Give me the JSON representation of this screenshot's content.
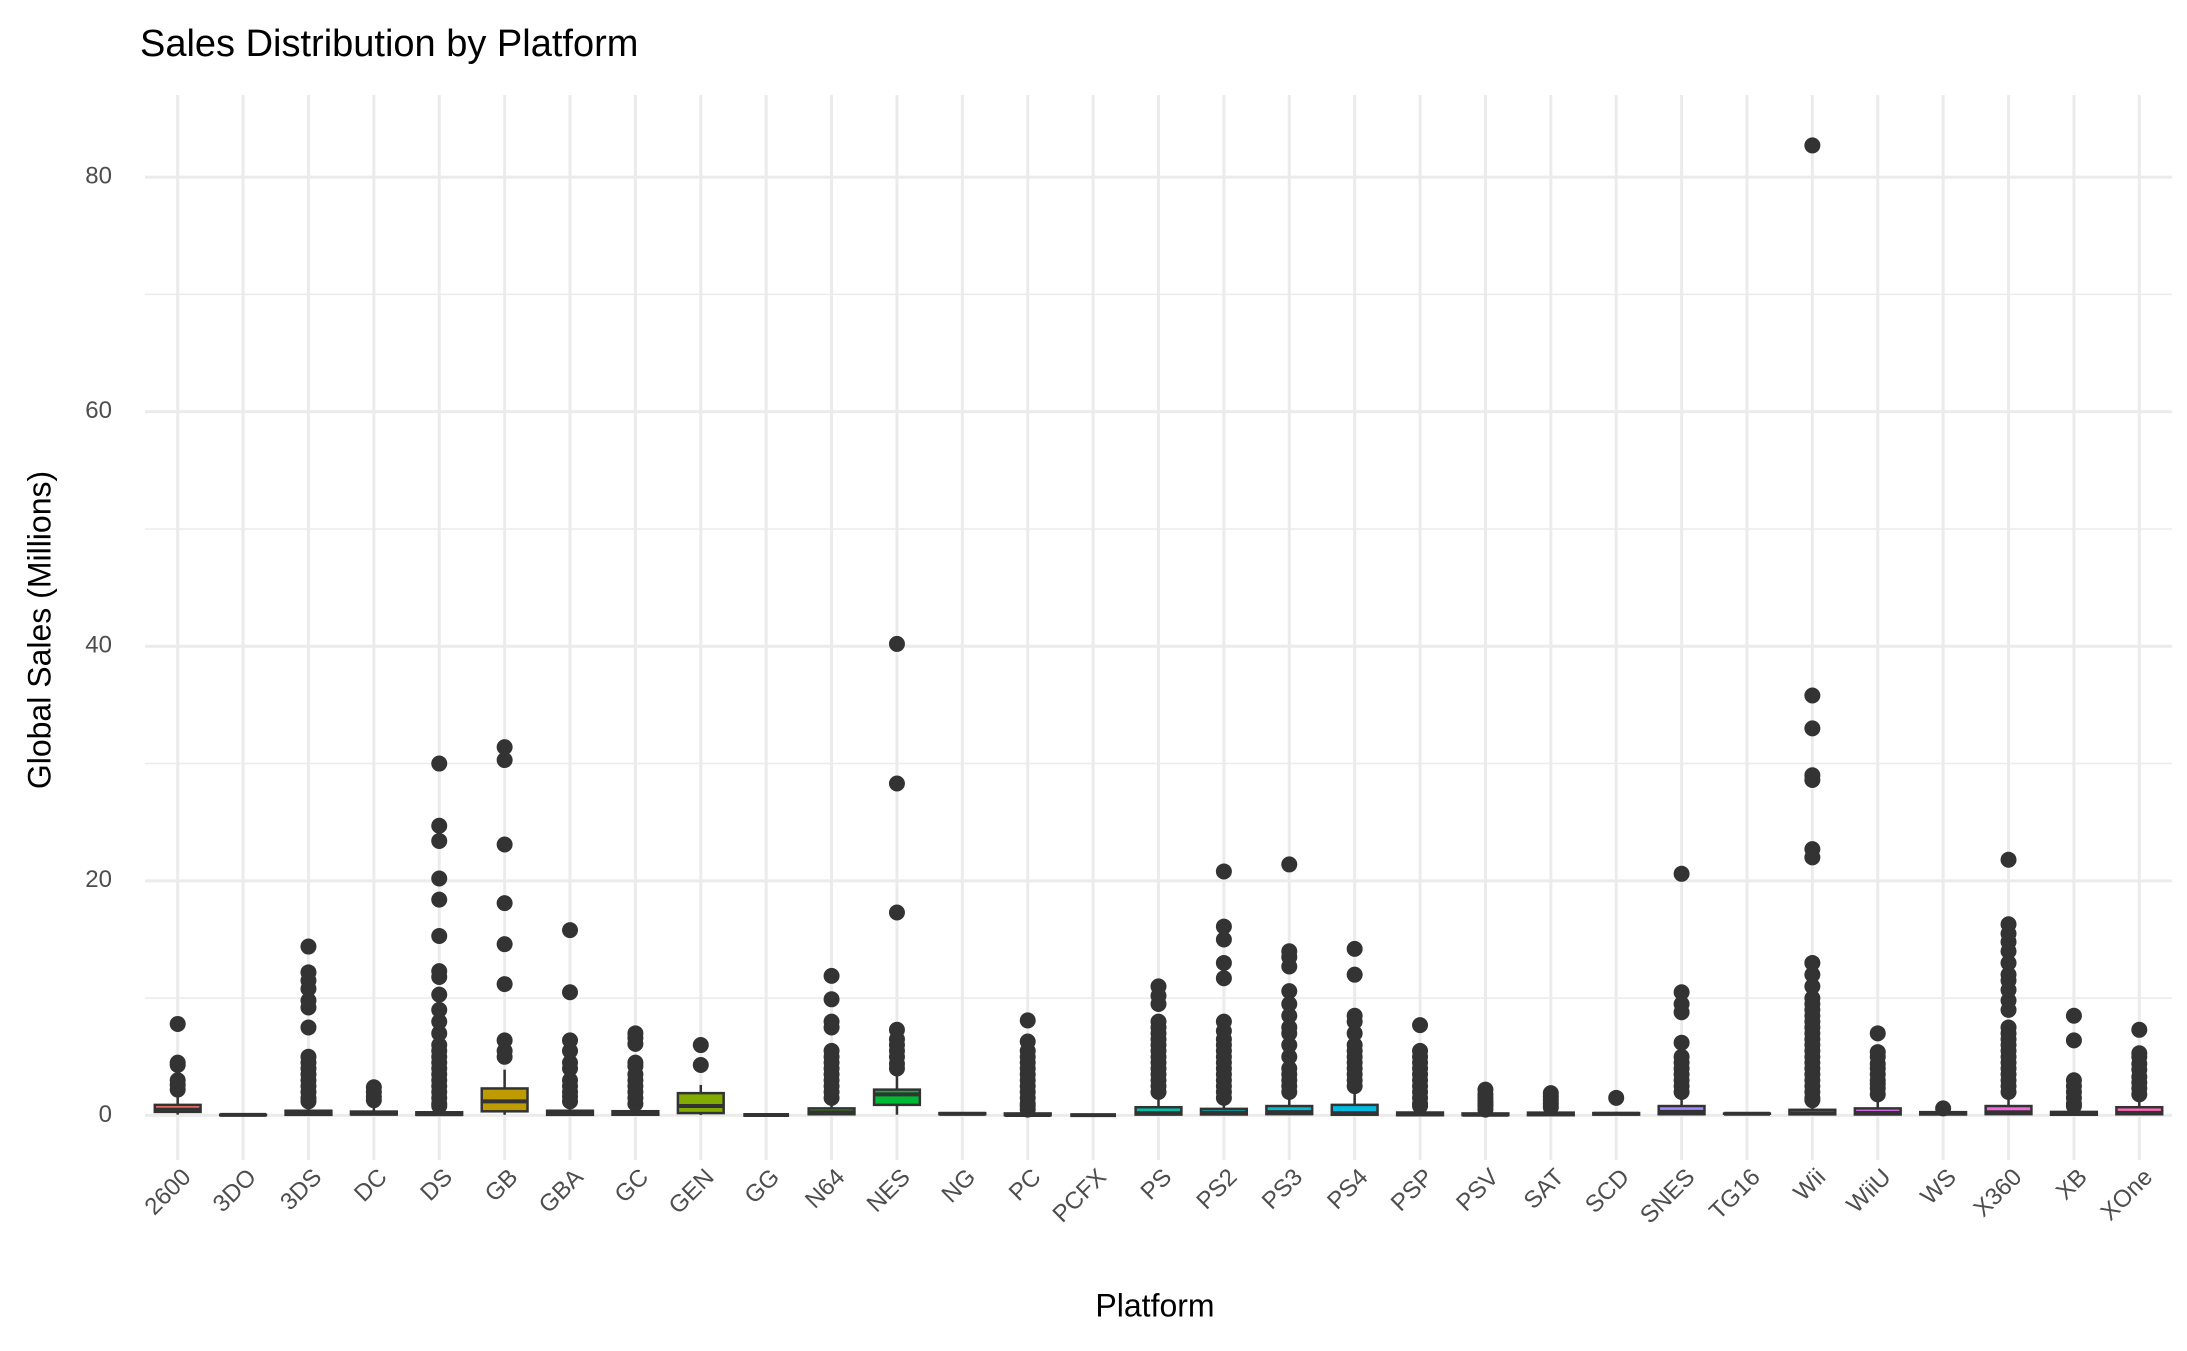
{
  "chart_data": {
    "type": "boxplot",
    "title": "Sales Distribution by Platform",
    "x_label": "Platform",
    "y_label": "Global Sales (Millions)",
    "ylim": [
      -3.8,
      87
    ],
    "yticks": [
      0,
      20,
      40,
      60,
      80
    ],
    "y_minor_ticks": [
      10,
      30,
      50,
      70
    ],
    "grid": true,
    "box_stroke": "#333333",
    "outlier_color": "#333333",
    "categories": [
      "2600",
      "3DO",
      "3DS",
      "DC",
      "DS",
      "GB",
      "GBA",
      "GC",
      "GEN",
      "GG",
      "N64",
      "NES",
      "NG",
      "PC",
      "PCFX",
      "PS",
      "PS2",
      "PS3",
      "PS4",
      "PSP",
      "PSV",
      "SAT",
      "SCD",
      "SNES",
      "TG16",
      "Wii",
      "WiiU",
      "WS",
      "X360",
      "XB",
      "XOne"
    ],
    "colors": [
      "#F8766D",
      "#F17D51",
      "#E7851E",
      "#DB8E00",
      "#CD9600",
      "#BE9C00",
      "#AEA200",
      "#9AA800",
      "#82AD00",
      "#64B200",
      "#35B600",
      "#00B935",
      "#00BC59",
      "#00BE76",
      "#00C08F",
      "#00C1A7",
      "#00C0BC",
      "#00BED0",
      "#00BAE1",
      "#00B4EF",
      "#00ACFC",
      "#3DA1FF",
      "#8494FF",
      "#A58AFF",
      "#BE80FF",
      "#D277FF",
      "#E26EF7",
      "#EE67EB",
      "#F865DC",
      "#FF62CB",
      "#FF65B8"
    ],
    "boxes": [
      {
        "whisker_low": 0.07,
        "q1": 0.3,
        "median": 0.5,
        "q3": 0.9,
        "whisker_high": 1.8,
        "outliers": [
          2.2,
          2.6,
          3.0,
          4.3,
          4.5,
          7.8
        ]
      },
      {
        "whisker_low": 0.02,
        "q1": 0.02,
        "median": 0.05,
        "q3": 0.06,
        "whisker_high": 0.1,
        "outliers": []
      },
      {
        "whisker_low": 0.01,
        "q1": 0.05,
        "median": 0.12,
        "q3": 0.4,
        "whisker_high": 0.9,
        "outliers": [
          1.2,
          1.5,
          2,
          2.5,
          3,
          3.5,
          4,
          4.5,
          5,
          7.5,
          9.2,
          9.8,
          10.8,
          11.5,
          12.2,
          14.4
        ]
      },
      {
        "whisker_low": 0.02,
        "q1": 0.08,
        "median": 0.14,
        "q3": 0.33,
        "whisker_high": 0.7,
        "outliers": [
          1.3,
          1.6,
          2.0,
          2.4
        ]
      },
      {
        "whisker_low": 0.01,
        "q1": 0.05,
        "median": 0.11,
        "q3": 0.27,
        "whisker_high": 0.6,
        "outliers": [
          0.8,
          1,
          1.5,
          2,
          2.5,
          3,
          3.5,
          4,
          4.5,
          5,
          5.5,
          6,
          7,
          8,
          9,
          10.3,
          11.8,
          12.3,
          15.3,
          18.4,
          20.2,
          23.4,
          24.7,
          30
        ]
      },
      {
        "whisker_low": 0.05,
        "q1": 0.35,
        "median": 1.2,
        "q3": 2.3,
        "whisker_high": 3.9,
        "outliers": [
          5,
          5.5,
          6.4,
          11.2,
          14.6,
          18.1,
          23.1,
          30.3,
          31.4
        ]
      },
      {
        "whisker_low": 0.01,
        "q1": 0.05,
        "median": 0.16,
        "q3": 0.4,
        "whisker_high": 0.9,
        "outliers": [
          1.2,
          1.6,
          2,
          2.5,
          3,
          4,
          4.5,
          5.5,
          6.4,
          10.5,
          15.8
        ]
      },
      {
        "whisker_low": 0.01,
        "q1": 0.06,
        "median": 0.15,
        "q3": 0.36,
        "whisker_high": 0.8,
        "outliers": [
          1,
          1.5,
          2,
          2.5,
          3,
          3.5,
          4.2,
          4.5,
          6.1,
          6.6,
          7
        ]
      },
      {
        "whisker_low": 0.03,
        "q1": 0.2,
        "median": 0.8,
        "q3": 1.9,
        "whisker_high": 2.6,
        "outliers": [
          4.3,
          6
        ]
      },
      {
        "whisker_low": 0.04,
        "q1": 0.04,
        "median": 0.04,
        "q3": 0.04,
        "whisker_high": 0.04,
        "outliers": []
      },
      {
        "whisker_low": 0.01,
        "q1": 0.1,
        "median": 0.27,
        "q3": 0.6,
        "whisker_high": 1.3,
        "outliers": [
          1.5,
          2,
          2.5,
          3,
          3.5,
          4,
          4.5,
          5,
          5.5,
          7.5,
          8,
          9.9,
          11.9
        ]
      },
      {
        "whisker_low": 0.06,
        "q1": 0.9,
        "median": 1.8,
        "q3": 2.2,
        "whisker_high": 3.6,
        "outliers": [
          4,
          4.4,
          5,
          5.5,
          6,
          6.5,
          7.3,
          17.3,
          28.3,
          40.2
        ]
      },
      {
        "whisker_low": 0.02,
        "q1": 0.1,
        "median": 0.13,
        "q3": 0.2,
        "whisker_high": 0.25,
        "outliers": []
      },
      {
        "whisker_low": 0.01,
        "q1": 0.02,
        "median": 0.04,
        "q3": 0.17,
        "whisker_high": 0.4,
        "outliers": [
          0.5,
          0.8,
          1,
          1.5,
          2,
          2.5,
          3,
          3.5,
          4,
          4.5,
          5,
          5.5,
          6.3,
          8.1
        ]
      },
      {
        "whisker_low": 0.03,
        "q1": 0.03,
        "median": 0.03,
        "q3": 0.03,
        "whisker_high": 0.03,
        "outliers": []
      },
      {
        "whisker_low": 0.01,
        "q1": 0.07,
        "median": 0.2,
        "q3": 0.7,
        "whisker_high": 1.6,
        "outliers": [
          2,
          2.5,
          3,
          3.5,
          4,
          4.5,
          5,
          5.5,
          6,
          6.5,
          7,
          7.5,
          8,
          9.5,
          10.2,
          11
        ]
      },
      {
        "whisker_low": 0.01,
        "q1": 0.08,
        "median": 0.23,
        "q3": 0.56,
        "whisker_high": 1.27,
        "outliers": [
          1.5,
          2,
          2.5,
          3,
          3.5,
          4,
          4.5,
          5,
          5.5,
          6,
          6.5,
          7.2,
          8,
          11.7,
          13,
          15,
          16.1,
          20.8
        ]
      },
      {
        "whisker_low": 0.01,
        "q1": 0.11,
        "median": 0.28,
        "q3": 0.8,
        "whisker_high": 1.8,
        "outliers": [
          2,
          2.5,
          3,
          3.5,
          4,
          5,
          6,
          7,
          7.5,
          8.5,
          9.5,
          10.6,
          12.7,
          13.5,
          14,
          21.4
        ]
      },
      {
        "whisker_low": 0.01,
        "q1": 0.06,
        "median": 0.2,
        "q3": 0.9,
        "whisker_high": 2.1,
        "outliers": [
          2.5,
          3,
          3.5,
          4,
          4.5,
          5,
          5.5,
          6,
          7,
          8,
          8.5,
          12,
          14.2
        ]
      },
      {
        "whisker_low": 0.01,
        "q1": 0.02,
        "median": 0.09,
        "q3": 0.25,
        "whisker_high": 0.6,
        "outliers": [
          0.8,
          1,
          1.5,
          2,
          2.5,
          3,
          3.5,
          4,
          4.5,
          5,
          5.5,
          7.7
        ]
      },
      {
        "whisker_low": 0.01,
        "q1": 0.03,
        "median": 0.06,
        "q3": 0.17,
        "whisker_high": 0.37,
        "outliers": [
          0.5,
          0.8,
          1,
          1.2,
          1.5,
          1.8,
          2.2
        ]
      },
      {
        "whisker_low": 0.01,
        "q1": 0.02,
        "median": 0.12,
        "q3": 0.24,
        "whisker_high": 0.5,
        "outliers": [
          0.7,
          1,
          1.3,
          1.6,
          1.9
        ]
      },
      {
        "whisker_low": 0.04,
        "q1": 0.07,
        "median": 0.14,
        "q3": 0.2,
        "whisker_high": 0.3,
        "outliers": [
          1.5
        ]
      },
      {
        "whisker_low": 0.01,
        "q1": 0.1,
        "median": 0.3,
        "q3": 0.8,
        "whisker_high": 1.7,
        "outliers": [
          2,
          2.5,
          3,
          3.5,
          4,
          4.5,
          5,
          6.2,
          8.8,
          9.5,
          10.5,
          20.6
        ]
      },
      {
        "whisker_low": 0.14,
        "q1": 0.14,
        "median": 0.14,
        "q3": 0.16,
        "whisker_high": 0.16,
        "outliers": []
      },
      {
        "whisker_low": 0.01,
        "q1": 0.09,
        "median": 0.19,
        "q3": 0.48,
        "whisker_high": 1.05,
        "outliers": [
          1.3,
          1.5,
          2,
          2.5,
          3,
          3.5,
          4,
          4.5,
          5,
          5.5,
          6,
          6.5,
          7,
          7.5,
          8,
          8.5,
          9,
          9.5,
          10,
          11,
          12,
          13,
          22,
          22.7,
          28.6,
          29,
          33,
          35.8,
          82.7
        ]
      },
      {
        "whisker_low": 0.01,
        "q1": 0.08,
        "median": 0.22,
        "q3": 0.6,
        "whisker_high": 1.3,
        "outliers": [
          1.8,
          2.3,
          2.7,
          3,
          3.5,
          4,
          4.4,
          5,
          5.4,
          7
        ]
      },
      {
        "whisker_low": 0.02,
        "q1": 0.08,
        "median": 0.2,
        "q3": 0.28,
        "whisker_high": 0.4,
        "outliers": [
          0.6
        ]
      },
      {
        "whisker_low": 0.01,
        "q1": 0.11,
        "median": 0.27,
        "q3": 0.8,
        "whisker_high": 1.85,
        "outliers": [
          2,
          2.5,
          3,
          3.5,
          4,
          4.5,
          5,
          5.5,
          6,
          6.5,
          7,
          7.5,
          9,
          9.8,
          10.7,
          11.5,
          12,
          13,
          14,
          14.8,
          15.5,
          16.3,
          21.8
        ]
      },
      {
        "whisker_low": 0.01,
        "q1": 0.06,
        "median": 0.15,
        "q3": 0.3,
        "whisker_high": 0.66,
        "outliers": [
          0.8,
          1,
          1.5,
          2,
          2.5,
          3,
          6.4,
          8.5
        ]
      },
      {
        "whisker_low": 0.01,
        "q1": 0.1,
        "median": 0.22,
        "q3": 0.7,
        "whisker_high": 1.5,
        "outliers": [
          1.8,
          2.3,
          2.8,
          3.3,
          3.9,
          4.4,
          5,
          5.3,
          7.3
        ]
      }
    ]
  }
}
